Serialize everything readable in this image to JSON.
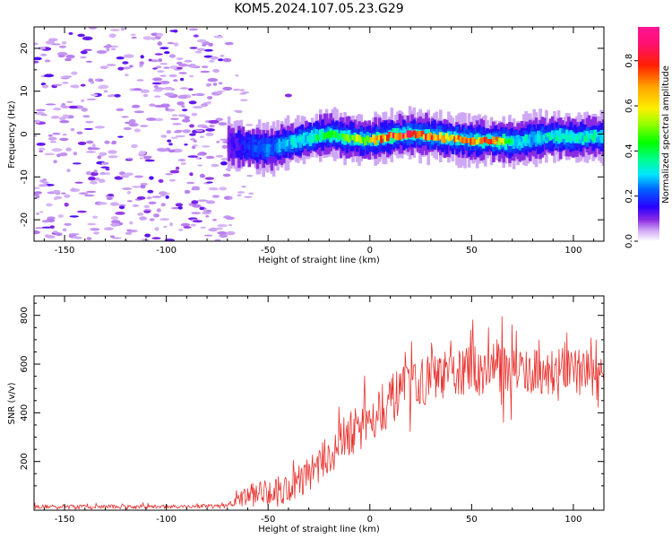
{
  "title": "KOM5.2024.107.05.23.G29",
  "chart_data": [
    {
      "type": "heatmap",
      "xlabel": "Height of straight line (km)",
      "ylabel": "Frequency (Hz)",
      "xlim": [
        -165,
        115
      ],
      "ylim": [
        -25,
        25
      ],
      "xticks": [
        -150,
        -100,
        -50,
        0,
        50,
        100
      ],
      "yticks": [
        -20,
        -10,
        0,
        10,
        20
      ],
      "colorbar": {
        "label": "Normalized spectral amplitude",
        "range": [
          0.0,
          0.95
        ],
        "ticks": [
          0.0,
          0.2,
          0.4,
          0.6,
          0.8
        ],
        "colormap": "gist_ncar-like (white → purple → blue → cyan → green → yellow → orange → red → pink)"
      },
      "ridge": {
        "description": "Narrow high-amplitude band near 0 Hz from about -70 km to 115 km; scattered low-amplitude noise blobs for heights below about -70 km",
        "center_freq_by_height": {
          "x": [
            -70,
            -60,
            -50,
            -40,
            -30,
            -20,
            -10,
            0,
            10,
            20,
            30,
            40,
            50,
            60,
            70,
            80,
            90,
            100,
            110,
            115
          ],
          "y": [
            -2.5,
            -3,
            -3.5,
            -2,
            -1,
            0,
            -1,
            -1.5,
            -0.5,
            0,
            -0.5,
            -1,
            -1.5,
            -1.5,
            -2,
            -1,
            -0.5,
            -1,
            -0.5,
            -1
          ]
        },
        "peak_amplitude_by_height": {
          "x": [
            -70,
            -60,
            -50,
            -40,
            -30,
            -20,
            -10,
            0,
            10,
            20,
            30,
            40,
            50,
            60,
            70,
            80,
            90,
            100,
            110,
            115
          ],
          "y": [
            0.12,
            0.2,
            0.25,
            0.3,
            0.35,
            0.45,
            0.5,
            0.65,
            0.8,
            0.85,
            0.75,
            0.7,
            0.7,
            0.8,
            0.35,
            0.3,
            0.35,
            0.35,
            0.35,
            0.3
          ]
        }
      }
    },
    {
      "type": "line",
      "xlabel": "Height of straight line (km)",
      "ylabel": "SNR (v/v)",
      "xlim": [
        -165,
        115
      ],
      "ylim": [
        0,
        880
      ],
      "xticks": [
        -150,
        -100,
        -50,
        0,
        50,
        100
      ],
      "yticks": [
        200,
        400,
        600,
        800
      ],
      "series": [
        {
          "color": "#e8322e",
          "trend": {
            "x": [
              -165,
              -150,
              -100,
              -70,
              -60,
              -50,
              -40,
              -30,
              -20,
              -10,
              0,
              10,
              20,
              30,
              40,
              50,
              60,
              70,
              80,
              90,
              100,
              110,
              115
            ],
            "y": [
              15,
              15,
              15,
              18,
              60,
              80,
              90,
              150,
              230,
              310,
              380,
              450,
              510,
              540,
              560,
              575,
              590,
              580,
              570,
              570,
              575,
              570,
              565
            ]
          },
          "noise_amplitude": {
            "x": [
              -165,
              -70,
              -60,
              -40,
              -20,
              0,
              40,
              60,
              80,
              115
            ],
            "y": [
              10,
              10,
              60,
              80,
              100,
              130,
              120,
              150,
              120,
              110
            ]
          }
        }
      ]
    }
  ]
}
